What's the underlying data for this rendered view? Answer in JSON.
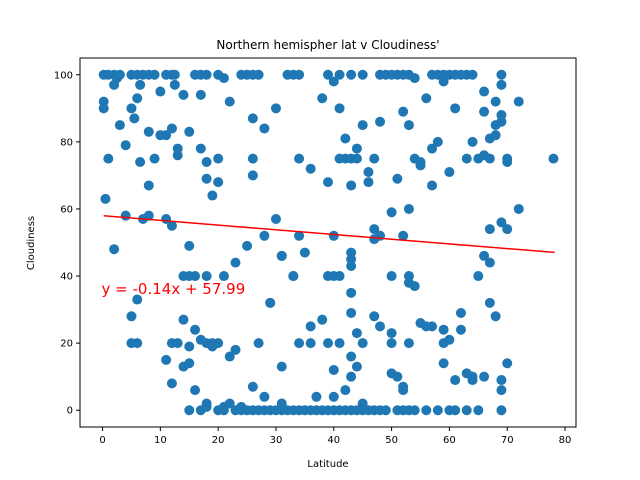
{
  "chart_data": {
    "type": "scatter",
    "title": "Northern hemispher lat v Cloudiness'",
    "xlabel": "Latitude",
    "ylabel": "Cloudiness",
    "xlim": [
      -3.9,
      81.9
    ],
    "ylim": [
      -5,
      105
    ],
    "xticks": [
      0,
      10,
      20,
      30,
      40,
      50,
      60,
      70,
      80
    ],
    "yticks": [
      0,
      20,
      40,
      60,
      80,
      100
    ],
    "grid": false,
    "legend": "none",
    "marker_color": "#1f77b4",
    "regression": {
      "slope": -0.14,
      "intercept": 57.99,
      "x_range": [
        0.2,
        78.2
      ],
      "color": "#ff0000",
      "equation_text": "y = -0.14x + 57.99",
      "equation_anchor": [
        0,
        35
      ]
    },
    "points": [
      [
        0.2,
        100
      ],
      [
        1,
        100
      ],
      [
        2,
        100
      ],
      [
        2.5,
        99
      ],
      [
        3,
        100
      ],
      [
        5,
        100
      ],
      [
        6,
        100
      ],
      [
        7,
        100
      ],
      [
        8,
        100
      ],
      [
        9,
        100
      ],
      [
        11,
        100
      ],
      [
        12,
        100
      ],
      [
        12.5,
        100
      ],
      [
        16,
        100
      ],
      [
        17,
        100
      ],
      [
        18,
        100
      ],
      [
        20,
        100
      ],
      [
        21,
        99
      ],
      [
        24,
        100
      ],
      [
        25,
        100
      ],
      [
        26,
        100
      ],
      [
        27,
        100
      ],
      [
        32,
        100
      ],
      [
        33,
        100
      ],
      [
        34,
        100
      ],
      [
        39,
        100
      ],
      [
        41,
        100
      ],
      [
        43,
        100
      ],
      [
        45,
        100
      ],
      [
        48,
        100
      ],
      [
        49,
        100
      ],
      [
        50,
        100
      ],
      [
        51,
        100
      ],
      [
        52,
        100
      ],
      [
        53,
        100
      ],
      [
        54,
        99
      ],
      [
        57,
        100
      ],
      [
        58,
        100
      ],
      [
        59,
        100
      ],
      [
        60,
        100
      ],
      [
        61,
        100
      ],
      [
        63,
        100
      ],
      [
        64,
        100
      ],
      [
        69,
        100
      ],
      [
        0.2,
        92
      ],
      [
        0.2,
        90
      ],
      [
        2,
        97
      ],
      [
        3,
        85
      ],
      [
        4,
        79
      ],
      [
        5,
        90
      ],
      [
        5.5,
        87
      ],
      [
        6,
        93
      ],
      [
        6.5,
        97
      ],
      [
        6.5,
        74
      ],
      [
        8,
        83
      ],
      [
        8,
        67
      ],
      [
        9,
        75
      ],
      [
        10,
        95
      ],
      [
        10,
        82
      ],
      [
        11,
        82
      ],
      [
        12,
        84
      ],
      [
        12.5,
        97
      ],
      [
        13,
        76
      ],
      [
        13,
        78
      ],
      [
        14,
        94
      ],
      [
        15,
        83
      ],
      [
        17,
        94
      ],
      [
        17,
        78
      ],
      [
        18,
        74
      ],
      [
        18,
        69
      ],
      [
        19,
        64
      ],
      [
        20,
        75
      ],
      [
        20,
        68
      ],
      [
        22,
        92
      ],
      [
        26,
        75
      ],
      [
        26,
        70
      ],
      [
        26,
        87
      ],
      [
        28,
        84
      ],
      [
        30,
        90
      ],
      [
        31,
        46
      ],
      [
        33,
        40
      ],
      [
        34,
        75
      ],
      [
        34,
        52
      ],
      [
        35,
        47
      ],
      [
        36,
        72
      ],
      [
        38,
        93
      ],
      [
        39,
        68
      ],
      [
        39,
        40
      ],
      [
        40,
        40
      ],
      [
        40,
        98
      ],
      [
        41,
        90
      ],
      [
        41,
        75
      ],
      [
        42,
        81
      ],
      [
        42,
        75
      ],
      [
        43,
        75
      ],
      [
        43,
        67
      ],
      [
        44,
        78
      ],
      [
        44,
        75
      ],
      [
        45,
        85
      ],
      [
        46,
        71
      ],
      [
        46,
        68
      ],
      [
        47,
        54
      ],
      [
        47,
        75
      ],
      [
        48,
        86
      ],
      [
        48,
        52
      ],
      [
        50,
        59
      ],
      [
        51,
        69
      ],
      [
        52,
        89
      ],
      [
        52,
        52
      ],
      [
        53,
        60
      ],
      [
        53,
        85
      ],
      [
        54,
        75
      ],
      [
        55,
        73
      ],
      [
        55,
        74
      ],
      [
        56,
        93
      ],
      [
        57,
        78
      ],
      [
        58,
        80
      ],
      [
        57,
        67
      ],
      [
        59,
        98
      ],
      [
        60,
        71
      ],
      [
        61,
        90
      ],
      [
        62,
        100
      ],
      [
        63,
        75
      ],
      [
        64,
        80
      ],
      [
        65,
        75
      ],
      [
        66,
        95
      ],
      [
        66,
        89
      ],
      [
        66,
        76
      ],
      [
        67,
        75
      ],
      [
        67,
        81
      ],
      [
        68,
        82
      ],
      [
        68,
        92
      ],
      [
        68,
        85
      ],
      [
        69,
        97
      ],
      [
        69,
        88
      ],
      [
        69,
        86
      ],
      [
        70,
        75
      ],
      [
        70,
        74
      ],
      [
        72,
        92
      ],
      [
        78,
        75
      ],
      [
        0.5,
        63
      ],
      [
        1,
        75
      ],
      [
        2,
        48
      ],
      [
        4,
        58
      ],
      [
        7,
        57
      ],
      [
        8,
        58
      ],
      [
        11,
        57
      ],
      [
        12,
        55
      ],
      [
        14,
        40
      ],
      [
        15,
        40
      ],
      [
        15,
        49
      ],
      [
        16,
        40
      ],
      [
        18,
        40
      ],
      [
        21,
        40
      ],
      [
        23,
        44
      ],
      [
        25,
        49
      ],
      [
        28,
        52
      ],
      [
        30,
        57
      ],
      [
        31,
        46
      ],
      [
        33,
        40
      ],
      [
        40,
        52
      ],
      [
        41,
        40
      ],
      [
        43,
        47
      ],
      [
        43,
        45
      ],
      [
        43,
        43
      ],
      [
        47,
        51
      ],
      [
        50,
        40
      ],
      [
        53,
        38
      ],
      [
        54,
        37
      ],
      [
        53,
        40
      ],
      [
        65,
        40
      ],
      [
        66,
        46
      ],
      [
        67,
        54
      ],
      [
        67,
        44
      ],
      [
        69,
        56
      ],
      [
        70,
        54
      ],
      [
        72,
        60
      ],
      [
        5,
        28
      ],
      [
        5,
        20
      ],
      [
        6,
        20
      ],
      [
        6,
        33
      ],
      [
        11,
        15
      ],
      [
        12,
        20
      ],
      [
        12,
        8
      ],
      [
        13,
        20
      ],
      [
        14,
        27
      ],
      [
        14,
        13
      ],
      [
        15,
        19
      ],
      [
        15,
        14
      ],
      [
        16,
        6
      ],
      [
        16,
        24
      ],
      [
        17,
        21
      ],
      [
        18,
        20
      ],
      [
        18,
        2
      ],
      [
        19,
        20
      ],
      [
        19,
        19
      ],
      [
        20,
        20
      ],
      [
        21,
        1
      ],
      [
        22,
        16
      ],
      [
        23,
        18
      ],
      [
        24,
        1
      ],
      [
        26,
        7
      ],
      [
        27,
        20
      ],
      [
        28,
        4
      ],
      [
        29,
        32
      ],
      [
        29,
        32
      ],
      [
        31,
        13
      ],
      [
        34,
        20
      ],
      [
        36,
        20
      ],
      [
        36,
        25
      ],
      [
        37,
        4
      ],
      [
        38,
        27
      ],
      [
        39,
        20
      ],
      [
        40,
        12
      ],
      [
        40,
        4
      ],
      [
        41,
        20
      ],
      [
        42,
        6
      ],
      [
        43,
        10
      ],
      [
        43,
        35
      ],
      [
        43,
        29
      ],
      [
        43,
        16
      ],
      [
        44,
        13
      ],
      [
        44,
        23
      ],
      [
        45,
        20
      ],
      [
        45,
        2
      ],
      [
        47,
        28
      ],
      [
        48,
        25
      ],
      [
        50,
        20
      ],
      [
        50,
        11
      ],
      [
        50,
        23
      ],
      [
        51,
        10
      ],
      [
        52,
        6
      ],
      [
        52,
        7
      ],
      [
        53,
        20
      ],
      [
        55,
        26
      ],
      [
        56,
        25
      ],
      [
        57,
        25
      ],
      [
        59,
        20
      ],
      [
        59,
        14
      ],
      [
        59,
        24
      ],
      [
        60,
        21
      ],
      [
        61,
        9
      ],
      [
        62,
        29
      ],
      [
        62,
        24
      ],
      [
        63,
        11
      ],
      [
        64,
        9
      ],
      [
        64,
        10
      ],
      [
        66,
        10
      ],
      [
        67,
        32
      ],
      [
        68,
        28
      ],
      [
        69,
        9
      ],
      [
        69,
        6
      ],
      [
        70,
        14
      ],
      [
        15,
        0
      ],
      [
        17,
        0
      ],
      [
        18,
        1
      ],
      [
        20,
        0
      ],
      [
        21,
        0
      ],
      [
        22,
        2
      ],
      [
        23,
        0
      ],
      [
        24,
        0
      ],
      [
        25,
        0
      ],
      [
        26,
        0
      ],
      [
        27,
        0
      ],
      [
        28,
        0
      ],
      [
        29,
        0
      ],
      [
        30,
        0
      ],
      [
        31,
        0
      ],
      [
        31,
        2
      ],
      [
        32,
        0
      ],
      [
        33,
        0
      ],
      [
        34,
        0
      ],
      [
        35,
        0
      ],
      [
        36,
        0
      ],
      [
        37,
        0
      ],
      [
        38,
        0
      ],
      [
        39,
        0
      ],
      [
        40,
        0
      ],
      [
        41,
        0
      ],
      [
        42,
        0
      ],
      [
        43,
        0
      ],
      [
        44,
        0
      ],
      [
        45,
        0
      ],
      [
        46,
        0
      ],
      [
        47,
        0
      ],
      [
        48,
        0
      ],
      [
        49,
        0
      ],
      [
        51,
        0
      ],
      [
        52,
        0
      ],
      [
        53,
        0
      ],
      [
        54,
        0
      ],
      [
        56,
        0
      ],
      [
        58,
        0
      ],
      [
        60,
        0
      ],
      [
        61,
        0
      ],
      [
        63,
        0
      ],
      [
        65,
        0
      ],
      [
        69,
        0
      ]
    ]
  }
}
